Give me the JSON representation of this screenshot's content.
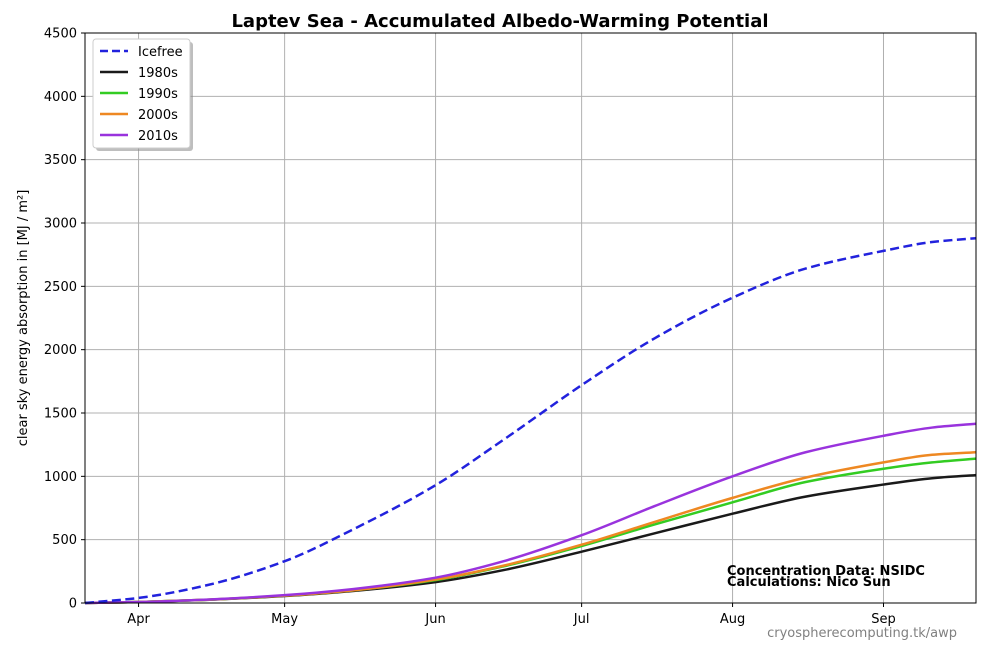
{
  "chart_data": {
    "type": "line",
    "title": "Laptev Sea - Accumulated Albedo-Warming Potential",
    "ylabel": "clear sky energy absorption in  [MJ / m²]",
    "xlabel": "",
    "ylim": [
      0,
      4500
    ],
    "yticks": [
      "0",
      "500",
      "1000",
      "1500",
      "2000",
      "2500",
      "3000",
      "3500",
      "4000",
      "4500"
    ],
    "xlim_day": [
      80,
      263
    ],
    "xticks": [
      {
        "label": "Apr",
        "day": 91
      },
      {
        "label": "May",
        "day": 121
      },
      {
        "label": "Jun",
        "day": 152
      },
      {
        "label": "Jul",
        "day": 182
      },
      {
        "label": "Aug",
        "day": 213
      },
      {
        "label": "Sep",
        "day": 244
      }
    ],
    "grid": true,
    "legend_position": "top-left",
    "x_days": [
      80,
      91,
      105,
      121,
      135,
      152,
      166,
      182,
      197,
      213,
      228,
      244,
      254,
      263
    ],
    "series": [
      {
        "name": "Icefree",
        "color": "#2222dd",
        "dashed": true,
        "values": [
          0,
          40,
          140,
          330,
          580,
          930,
          1290,
          1720,
          2090,
          2410,
          2640,
          2780,
          2850,
          2880
        ]
      },
      {
        "name": "1980s",
        "color": "#1a1a1a",
        "dashed": false,
        "values": [
          0,
          8,
          25,
          55,
          95,
          165,
          260,
          405,
          550,
          705,
          840,
          935,
          985,
          1010
        ]
      },
      {
        "name": "1990s",
        "color": "#33cc22",
        "dashed": false,
        "values": [
          0,
          8,
          26,
          58,
          100,
          180,
          290,
          450,
          620,
          795,
          955,
          1060,
          1110,
          1140
        ]
      },
      {
        "name": "2000s",
        "color": "#ee8822",
        "dashed": false,
        "values": [
          0,
          8,
          26,
          58,
          100,
          185,
          295,
          460,
          640,
          830,
          990,
          1110,
          1170,
          1190
        ]
      },
      {
        "name": "2010s",
        "color": "#9933dd",
        "dashed": false,
        "values": [
          0,
          8,
          27,
          62,
          110,
          200,
          330,
          535,
          765,
          1000,
          1190,
          1320,
          1385,
          1415
        ]
      }
    ],
    "annotations": [
      "Concentration Data: NSIDC",
      "Calculations: Nico Sun"
    ],
    "source": "cryospherecomputing.tk/awp"
  }
}
